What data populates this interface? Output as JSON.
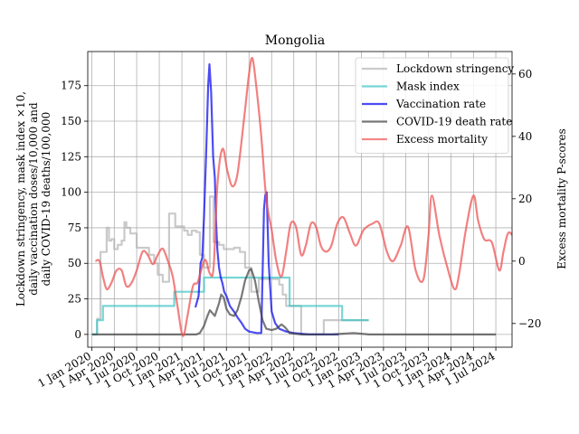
{
  "chart_data": {
    "type": "line",
    "title": "Mongolia",
    "ylabel_left_lines": [
      "Lockdown stringency, mask index ×10,",
      "daily vaccination doses/10,000 and",
      "daily COVID-19 deaths/100,000"
    ],
    "ylabel_right": "Excess mortality P-scores",
    "xlim": [
      "2019-12-15",
      "2024-09-05"
    ],
    "ylim_left": [
      -9,
      199
    ],
    "ylim_right": [
      -27.6,
      67.2
    ],
    "grid": true,
    "legend_position": "top-right",
    "x_ticks": [
      "2020-01-01",
      "2020-04-01",
      "2020-07-01",
      "2020-10-01",
      "2021-01-01",
      "2021-04-01",
      "2021-07-01",
      "2021-10-01",
      "2022-01-01",
      "2022-04-01",
      "2022-07-01",
      "2022-10-01",
      "2023-01-01",
      "2023-04-01",
      "2023-07-01",
      "2023-10-01",
      "2024-01-01",
      "2024-04-01",
      "2024-07-01"
    ],
    "x_tick_labels": [
      "1 Jan 2020",
      "1 Apr 2020",
      "1 Jul 2020",
      "1 Oct 2020",
      "1 Jan 2021",
      "1 Apr 2021",
      "1 Jul 2021",
      "1 Oct 2021",
      "1 Jan 2022",
      "1 Apr 2022",
      "1 Jul 2022",
      "1 Oct 2022",
      "1 Jan 2023",
      "1 Apr 2023",
      "1 Jul 2023",
      "1 Oct 2023",
      "1 Jan 2024",
      "1 Apr 2024",
      "1 Jul 2024"
    ],
    "y_ticks_left": [
      0,
      25,
      50,
      75,
      100,
      125,
      150,
      175
    ],
    "y_ticks_right": [
      -20,
      0,
      20,
      40,
      60
    ],
    "series": [
      {
        "name": "Lockdown stringency",
        "color": "#b3b3b3",
        "axis": "left",
        "step": true,
        "points": [
          [
            "2020-01-01",
            0
          ],
          [
            "2020-01-22",
            11
          ],
          [
            "2020-02-05",
            58
          ],
          [
            "2020-03-01",
            75
          ],
          [
            "2020-03-10",
            66
          ],
          [
            "2020-03-20",
            67
          ],
          [
            "2020-04-01",
            60
          ],
          [
            "2020-04-15",
            63
          ],
          [
            "2020-05-01",
            66
          ],
          [
            "2020-05-12",
            79
          ],
          [
            "2020-05-20",
            75
          ],
          [
            "2020-06-05",
            71
          ],
          [
            "2020-07-01",
            61
          ],
          [
            "2020-08-20",
            56
          ],
          [
            "2020-09-10",
            50
          ],
          [
            "2020-09-25",
            42
          ],
          [
            "2020-10-15",
            37
          ],
          [
            "2020-11-10",
            85
          ],
          [
            "2020-12-05",
            76
          ],
          [
            "2021-01-10",
            73
          ],
          [
            "2021-01-25",
            70
          ],
          [
            "2021-02-10",
            73
          ],
          [
            "2021-03-01",
            72
          ],
          [
            "2021-03-15",
            56
          ],
          [
            "2021-04-01",
            47
          ],
          [
            "2021-04-25",
            97
          ],
          [
            "2021-05-10",
            65
          ],
          [
            "2021-06-01",
            63
          ],
          [
            "2021-06-20",
            60
          ],
          [
            "2021-08-01",
            61
          ],
          [
            "2021-08-25",
            58
          ],
          [
            "2021-09-15",
            47
          ],
          [
            "2021-10-10",
            30
          ],
          [
            "2021-11-10",
            39
          ],
          [
            "2022-02-01",
            35
          ],
          [
            "2022-02-15",
            28
          ],
          [
            "2022-03-01",
            20
          ],
          [
            "2022-05-01",
            0
          ],
          [
            "2022-08-01",
            10
          ],
          [
            "2023-01-31",
            10
          ]
        ]
      },
      {
        "name": "Mask index",
        "color": "#40c4c4",
        "axis": "left",
        "step": true,
        "points": [
          [
            "2020-01-01",
            0
          ],
          [
            "2020-01-22",
            10
          ],
          [
            "2020-02-15",
            20
          ],
          [
            "2020-10-20",
            20
          ],
          [
            "2020-12-01",
            30
          ],
          [
            "2021-04-01",
            40
          ],
          [
            "2022-03-15",
            20
          ],
          [
            "2022-10-15",
            10
          ],
          [
            "2023-01-31",
            10
          ]
        ]
      },
      {
        "name": "Vaccination rate",
        "color": "#0000ee",
        "axis": "left",
        "step": false,
        "points": [
          [
            "2021-02-25",
            19
          ],
          [
            "2021-03-10",
            27
          ],
          [
            "2021-03-18",
            50
          ],
          [
            "2021-03-25",
            54
          ],
          [
            "2021-04-01",
            83
          ],
          [
            "2021-04-10",
            130
          ],
          [
            "2021-04-18",
            175
          ],
          [
            "2021-04-23",
            190
          ],
          [
            "2021-04-30",
            170
          ],
          [
            "2021-05-08",
            125
          ],
          [
            "2021-05-15",
            110
          ],
          [
            "2021-05-20",
            80
          ],
          [
            "2021-05-25",
            60
          ],
          [
            "2021-06-01",
            47
          ],
          [
            "2021-06-08",
            40
          ],
          [
            "2021-06-15",
            36
          ],
          [
            "2021-06-22",
            30
          ],
          [
            "2021-07-01",
            27
          ],
          [
            "2021-07-15",
            20
          ],
          [
            "2021-08-01",
            16
          ],
          [
            "2021-08-15",
            12
          ],
          [
            "2021-09-01",
            8
          ],
          [
            "2021-09-15",
            4
          ],
          [
            "2021-10-01",
            2
          ],
          [
            "2021-11-01",
            1
          ],
          [
            "2021-11-20",
            1
          ],
          [
            "2021-11-26",
            50
          ],
          [
            "2021-12-01",
            88
          ],
          [
            "2021-12-06",
            98
          ],
          [
            "2021-12-12",
            100
          ],
          [
            "2021-12-20",
            50
          ],
          [
            "2022-01-01",
            16
          ],
          [
            "2022-01-15",
            8
          ],
          [
            "2022-02-01",
            4
          ],
          [
            "2022-03-01",
            2
          ],
          [
            "2022-04-01",
            1
          ],
          [
            "2022-06-01",
            0
          ],
          [
            "2022-10-01",
            0
          ]
        ]
      },
      {
        "name": "COVID-19 death rate",
        "color": "#404040",
        "axis": "left",
        "step": false,
        "points": [
          [
            "2020-01-01",
            0
          ],
          [
            "2021-01-01",
            0
          ],
          [
            "2021-03-01",
            0
          ],
          [
            "2021-03-15",
            1
          ],
          [
            "2021-04-01",
            6
          ],
          [
            "2021-04-15",
            13
          ],
          [
            "2021-04-25",
            17
          ],
          [
            "2021-05-05",
            15
          ],
          [
            "2021-05-15",
            13
          ],
          [
            "2021-06-01",
            22
          ],
          [
            "2021-06-10",
            28
          ],
          [
            "2021-06-20",
            26
          ],
          [
            "2021-07-01",
            18
          ],
          [
            "2021-07-15",
            14
          ],
          [
            "2021-08-01",
            13
          ],
          [
            "2021-08-15",
            17
          ],
          [
            "2021-09-01",
            27
          ],
          [
            "2021-09-15",
            38
          ],
          [
            "2021-10-01",
            45
          ],
          [
            "2021-10-10",
            46
          ],
          [
            "2021-10-25",
            38
          ],
          [
            "2021-11-10",
            23
          ],
          [
            "2021-11-25",
            10
          ],
          [
            "2021-12-10",
            4
          ],
          [
            "2022-01-01",
            3
          ],
          [
            "2022-01-20",
            4
          ],
          [
            "2022-02-10",
            7
          ],
          [
            "2022-02-25",
            5
          ],
          [
            "2022-03-15",
            1
          ],
          [
            "2022-05-01",
            0
          ],
          [
            "2022-09-01",
            0
          ],
          [
            "2022-12-01",
            1
          ],
          [
            "2023-02-01",
            0
          ],
          [
            "2024-07-01",
            0
          ]
        ]
      },
      {
        "name": "Excess mortality",
        "color": "#ee5555",
        "axis": "right",
        "step": false,
        "points": [
          [
            "2020-01-15",
            0
          ],
          [
            "2020-02-01",
            0
          ],
          [
            "2020-02-15",
            -5
          ],
          [
            "2020-03-01",
            -9
          ],
          [
            "2020-03-20",
            -7
          ],
          [
            "2020-04-10",
            -3
          ],
          [
            "2020-05-01",
            -3
          ],
          [
            "2020-05-20",
            -8
          ],
          [
            "2020-06-10",
            -7
          ],
          [
            "2020-07-01",
            -3
          ],
          [
            "2020-07-25",
            3
          ],
          [
            "2020-08-15",
            2
          ],
          [
            "2020-09-05",
            -1
          ],
          [
            "2020-09-25",
            2
          ],
          [
            "2020-10-15",
            4
          ],
          [
            "2020-11-05",
            0
          ],
          [
            "2020-11-25",
            -5
          ],
          [
            "2020-12-15",
            -15
          ],
          [
            "2021-01-05",
            -24
          ],
          [
            "2021-01-25",
            -17
          ],
          [
            "2021-02-15",
            -8
          ],
          [
            "2021-03-05",
            -7
          ],
          [
            "2021-03-20",
            -3
          ],
          [
            "2021-04-01",
            0
          ],
          [
            "2021-04-10",
            0
          ],
          [
            "2021-04-25",
            -4
          ],
          [
            "2021-05-10",
            -2
          ],
          [
            "2021-05-25",
            24
          ],
          [
            "2021-06-15",
            36
          ],
          [
            "2021-07-05",
            29
          ],
          [
            "2021-07-25",
            24
          ],
          [
            "2021-08-15",
            28
          ],
          [
            "2021-09-10",
            45
          ],
          [
            "2021-10-01",
            60
          ],
          [
            "2021-10-15",
            65
          ],
          [
            "2021-11-01",
            55
          ],
          [
            "2021-11-20",
            40
          ],
          [
            "2021-12-10",
            20
          ],
          [
            "2022-01-01",
            10
          ],
          [
            "2022-01-20",
            0
          ],
          [
            "2022-02-10",
            -5
          ],
          [
            "2022-03-01",
            3
          ],
          [
            "2022-03-20",
            12
          ],
          [
            "2022-04-10",
            11
          ],
          [
            "2022-05-01",
            2
          ],
          [
            "2022-05-20",
            5
          ],
          [
            "2022-06-10",
            12
          ],
          [
            "2022-07-01",
            11
          ],
          [
            "2022-07-20",
            5
          ],
          [
            "2022-08-10",
            3
          ],
          [
            "2022-09-01",
            5
          ],
          [
            "2022-09-25",
            12
          ],
          [
            "2022-10-20",
            14
          ],
          [
            "2022-11-15",
            9
          ],
          [
            "2022-12-10",
            5
          ],
          [
            "2023-01-10",
            10
          ],
          [
            "2023-02-15",
            12
          ],
          [
            "2023-03-15",
            12
          ],
          [
            "2023-04-15",
            3
          ],
          [
            "2023-05-10",
            0
          ],
          [
            "2023-06-10",
            5
          ],
          [
            "2023-07-10",
            11
          ],
          [
            "2023-08-10",
            -3
          ],
          [
            "2023-09-10",
            -6
          ],
          [
            "2023-10-01",
            8
          ],
          [
            "2023-10-15",
            21
          ],
          [
            "2023-11-15",
            8
          ],
          [
            "2023-12-20",
            -3
          ],
          [
            "2024-01-15",
            -9
          ],
          [
            "2024-02-01",
            -5
          ],
          [
            "2024-03-01",
            10
          ],
          [
            "2024-04-01",
            21
          ],
          [
            "2024-04-20",
            13
          ],
          [
            "2024-05-15",
            7
          ],
          [
            "2024-06-15",
            6
          ],
          [
            "2024-07-15",
            -3
          ],
          [
            "2024-08-01",
            3
          ],
          [
            "2024-08-20",
            9
          ],
          [
            "2024-09-10",
            8
          ],
          [
            "2024-09-25",
            7
          ]
        ]
      }
    ]
  }
}
